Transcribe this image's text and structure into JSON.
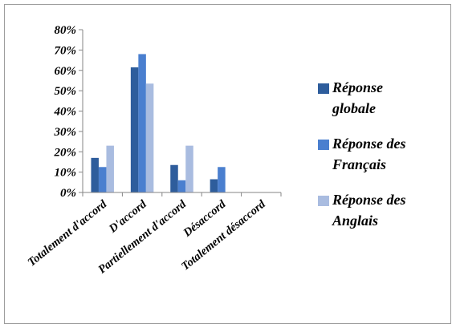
{
  "chart_data": {
    "type": "bar",
    "title": "",
    "xlabel": "",
    "ylabel": "",
    "ylim": [
      0,
      80
    ],
    "y_tick_labels": [
      "0%",
      "10%",
      "20%",
      "30%",
      "40%",
      "50%",
      "60%",
      "70%",
      "80%"
    ],
    "categories": [
      "Totalement d'accord",
      "D'accord",
      "Partiellement d'accord",
      "Désaccord",
      "Totalement désaccord"
    ],
    "grid": false,
    "legend_position": "right",
    "series": [
      {
        "name": "Réponse globale",
        "color": "#2e5d9c",
        "values": [
          17,
          61.5,
          13.5,
          6.5,
          0
        ]
      },
      {
        "name": "Réponse des Français",
        "color": "#4a7fcf",
        "values": [
          12.5,
          68,
          6,
          12.5,
          0
        ]
      },
      {
        "name": "Réponse des Anglais",
        "color": "#a9bce0",
        "values": [
          23,
          53.5,
          23,
          0,
          0
        ]
      }
    ]
  },
  "legend": {
    "items": [
      {
        "line1": "Réponse",
        "line2": "globale"
      },
      {
        "line1": "Réponse des",
        "line2": "Français"
      },
      {
        "line1": "Réponse des",
        "line2": "Anglais"
      }
    ]
  }
}
